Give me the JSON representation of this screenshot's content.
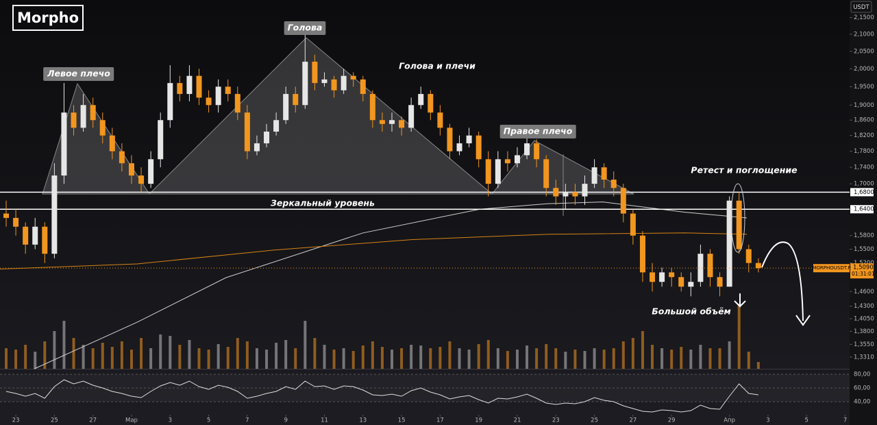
{
  "logo": "Morpho",
  "currency": "USDT",
  "chart_data": {
    "type": "candlestick",
    "log_scale": true,
    "x": [
      -0.5,
      0,
      0.5,
      1,
      1.5,
      2,
      2.5,
      3,
      3.5,
      4,
      4.5,
      5,
      5.5,
      6,
      6.5,
      7,
      7.5,
      8,
      8.5,
      9,
      9.5,
      10,
      10.5,
      11,
      11.5,
      12,
      12.5,
      13,
      13.5,
      14,
      14.5,
      15,
      15.5,
      16,
      16.5,
      17,
      17.5,
      18,
      18.5,
      19,
      19.5,
      20,
      20.5,
      21,
      21.5,
      22,
      22.5,
      23,
      23.5,
      24,
      24.5,
      25,
      25.5,
      26,
      26.5,
      27,
      27.5,
      28,
      28.5,
      29,
      29.5,
      30,
      30.5,
      31,
      31.5,
      32,
      32.5,
      33,
      33.5,
      34,
      34.5,
      35,
      35.5,
      36,
      36.5,
      37,
      37.5,
      38,
      38.5
    ],
    "xlim": [
      -0.82,
      43.23
    ],
    "xticks": [
      {
        "value": 0,
        "label": "23"
      },
      {
        "value": 2,
        "label": "25"
      },
      {
        "value": 4,
        "label": "27"
      },
      {
        "value": 6,
        "label": "Мар"
      },
      {
        "value": 8,
        "label": "3"
      },
      {
        "value": 10,
        "label": "5"
      },
      {
        "value": 12,
        "label": "7"
      },
      {
        "value": 14,
        "label": "9"
      },
      {
        "value": 16,
        "label": "11"
      },
      {
        "value": 18,
        "label": "13"
      },
      {
        "value": 20,
        "label": "15"
      },
      {
        "value": 22,
        "label": "17"
      },
      {
        "value": 24,
        "label": "19"
      },
      {
        "value": 26,
        "label": "21"
      },
      {
        "value": 28,
        "label": "23"
      },
      {
        "value": 30,
        "label": "25"
      },
      {
        "value": 32,
        "label": "27"
      },
      {
        "value": 34,
        "label": "29"
      },
      {
        "value": 37,
        "label": "Апр"
      },
      {
        "value": 39,
        "label": "3"
      },
      {
        "value": 41,
        "label": "5"
      },
      {
        "value": 43,
        "label": "7"
      }
    ],
    "open": [
      1.63,
      1.62,
      1.6,
      1.56,
      1.6,
      1.54,
      1.72,
      1.88,
      1.84,
      1.9,
      1.86,
      1.82,
      1.78,
      1.75,
      1.72,
      1.7,
      1.76,
      1.86,
      1.96,
      1.93,
      1.98,
      1.92,
      1.9,
      1.95,
      1.93,
      1.88,
      1.78,
      1.8,
      1.83,
      1.86,
      1.93,
      1.9,
      2.02,
      1.96,
      1.97,
      1.94,
      1.98,
      1.97,
      1.93,
      1.86,
      1.85,
      1.86,
      1.84,
      1.9,
      1.93,
      1.88,
      1.84,
      1.78,
      1.8,
      1.82,
      1.76,
      1.7,
      1.76,
      1.75,
      1.77,
      1.8,
      1.76,
      1.69,
      1.67,
      1.68,
      1.67,
      1.7,
      1.74,
      1.71,
      1.69,
      1.63,
      1.58,
      1.5,
      1.48,
      1.5,
      1.49,
      1.47,
      1.48,
      1.54,
      1.49,
      1.47,
      1.66,
      1.55,
      1.52
    ],
    "high": [
      1.66,
      1.64,
      1.61,
      1.62,
      1.61,
      1.75,
      1.96,
      1.9,
      1.93,
      1.92,
      1.88,
      1.84,
      1.8,
      1.77,
      1.74,
      1.78,
      1.88,
      2.01,
      1.98,
      2.01,
      2.0,
      1.94,
      1.97,
      1.97,
      1.95,
      1.9,
      1.82,
      1.85,
      1.88,
      1.95,
      1.95,
      2.1,
      2.04,
      1.99,
      1.98,
      2.0,
      1.99,
      1.98,
      1.94,
      1.88,
      1.88,
      1.87,
      1.92,
      1.95,
      1.94,
      1.9,
      1.85,
      1.82,
      1.84,
      1.83,
      1.78,
      1.78,
      1.78,
      1.79,
      1.82,
      1.81,
      1.77,
      1.71,
      1.7,
      1.7,
      1.72,
      1.76,
      1.75,
      1.73,
      1.7,
      1.64,
      1.59,
      1.52,
      1.51,
      1.51,
      1.5,
      1.5,
      1.56,
      1.55,
      1.5,
      1.67,
      1.68,
      1.56,
      1.53
    ],
    "low": [
      1.6,
      1.58,
      1.54,
      1.55,
      1.52,
      1.53,
      1.7,
      1.82,
      1.83,
      1.84,
      1.8,
      1.76,
      1.73,
      1.7,
      1.68,
      1.69,
      1.74,
      1.84,
      1.91,
      1.91,
      1.9,
      1.88,
      1.88,
      1.91,
      1.86,
      1.76,
      1.77,
      1.79,
      1.82,
      1.85,
      1.88,
      1.89,
      1.94,
      1.95,
      1.92,
      1.93,
      1.95,
      1.91,
      1.84,
      1.83,
      1.83,
      1.82,
      1.83,
      1.89,
      1.86,
      1.82,
      1.76,
      1.77,
      1.79,
      1.74,
      1.67,
      1.69,
      1.73,
      1.74,
      1.76,
      1.74,
      1.67,
      1.65,
      1.64,
      1.65,
      1.65,
      1.69,
      1.69,
      1.67,
      1.61,
      1.56,
      1.48,
      1.46,
      1.47,
      1.47,
      1.46,
      1.45,
      1.47,
      1.47,
      1.45,
      1.47,
      1.54,
      1.5,
      1.5
    ],
    "close": [
      1.62,
      1.6,
      1.56,
      1.6,
      1.54,
      1.72,
      1.88,
      1.84,
      1.9,
      1.86,
      1.82,
      1.78,
      1.75,
      1.72,
      1.7,
      1.76,
      1.86,
      1.96,
      1.93,
      1.98,
      1.92,
      1.9,
      1.95,
      1.93,
      1.88,
      1.78,
      1.8,
      1.83,
      1.86,
      1.93,
      1.9,
      2.02,
      1.96,
      1.97,
      1.94,
      1.98,
      1.97,
      1.93,
      1.86,
      1.85,
      1.86,
      1.84,
      1.9,
      1.93,
      1.88,
      1.84,
      1.78,
      1.8,
      1.82,
      1.76,
      1.7,
      1.76,
      1.75,
      1.77,
      1.8,
      1.76,
      1.69,
      1.67,
      1.68,
      1.67,
      1.7,
      1.74,
      1.71,
      1.69,
      1.63,
      1.58,
      1.5,
      1.48,
      1.5,
      1.49,
      1.47,
      1.48,
      1.54,
      1.49,
      1.47,
      1.66,
      1.55,
      1.52,
      1.509
    ],
    "up_color": "#e6e6e6",
    "down_color": "#f2961f",
    "ylim": [
      1.309,
      2.204
    ],
    "yticks": [
      {
        "value": 2.15,
        "label": "2,1500"
      },
      {
        "value": 2.1,
        "label": "2,1000"
      },
      {
        "value": 2.05,
        "label": "2,0500"
      },
      {
        "value": 2.0,
        "label": "2,0000"
      },
      {
        "value": 1.95,
        "label": "1,9500"
      },
      {
        "value": 1.9,
        "label": "1,9000"
      },
      {
        "value": 1.86,
        "label": "1,8600"
      },
      {
        "value": 1.82,
        "label": "1,8200"
      },
      {
        "value": 1.78,
        "label": "1,7800"
      },
      {
        "value": 1.74,
        "label": "1,7400"
      },
      {
        "value": 1.7,
        "label": "1,7000"
      },
      {
        "value": 1.58,
        "label": "1,5800"
      },
      {
        "value": 1.55,
        "label": "1,5500"
      },
      {
        "value": 1.52,
        "label": "1,5200"
      },
      {
        "value": 1.46,
        "label": "1,4600"
      },
      {
        "value": 1.43,
        "label": "1,4300"
      },
      {
        "value": 1.405,
        "label": "1,4050"
      },
      {
        "value": 1.38,
        "label": "1,3800"
      },
      {
        "value": 1.355,
        "label": "1,3550"
      },
      {
        "value": 1.331,
        "label": "1,3310"
      }
    ],
    "volume": {
      "ylim": [
        0,
        100
      ],
      "values": [
        30,
        28,
        35,
        25,
        40,
        55,
        70,
        45,
        35,
        30,
        38,
        32,
        40,
        28,
        45,
        30,
        50,
        48,
        35,
        42,
        30,
        28,
        36,
        32,
        45,
        40,
        30,
        28,
        38,
        42,
        30,
        70,
        45,
        35,
        28,
        30,
        26,
        34,
        40,
        32,
        28,
        30,
        35,
        34,
        30,
        32,
        40,
        30,
        28,
        36,
        42,
        30,
        26,
        28,
        34,
        30,
        36,
        30,
        25,
        28,
        26,
        30,
        28,
        30,
        40,
        45,
        55,
        35,
        30,
        28,
        32,
        28,
        35,
        30,
        30,
        40,
        95,
        25,
        10
      ]
    },
    "moving_averages": [
      {
        "color": "#d0d0d0",
        "x": [
          0.96,
          6.29,
          10.9,
          18.0,
          24.05,
          27.6,
          30.44,
          34.7,
          37.9
        ],
        "values": [
          1.309,
          1.398,
          1.489,
          1.586,
          1.64,
          1.653,
          1.657,
          1.633,
          1.62
        ]
      },
      {
        "color": "#d98216",
        "x": [
          -0.82,
          6.29,
          13.4,
          20.5,
          27.6,
          34.7,
          37.9
        ],
        "values": [
          1.507,
          1.518,
          1.548,
          1.571,
          1.583,
          1.586,
          1.583
        ]
      }
    ],
    "levels": [
      {
        "value": 1.68,
        "label": "1,6800"
      },
      {
        "value": 1.64,
        "label": "1,6400"
      }
    ],
    "last_price": {
      "symbol": "MORPHOUSDT.P",
      "value": 1.509,
      "label": "1,5090",
      "countdown": "01:31:01"
    },
    "rsi": {
      "ylim": [
        21,
        88
      ],
      "yticks": [
        {
          "value": 80,
          "label": "80,00"
        },
        {
          "value": 60,
          "label": "60,00"
        },
        {
          "value": 40,
          "label": "40,00"
        }
      ],
      "values": [
        55,
        52,
        48,
        52,
        45,
        62,
        72,
        66,
        70,
        64,
        60,
        55,
        52,
        48,
        46,
        55,
        63,
        68,
        64,
        70,
        62,
        58,
        64,
        61,
        55,
        45,
        48,
        52,
        55,
        62,
        58,
        70,
        62,
        63,
        58,
        63,
        62,
        57,
        50,
        49,
        51,
        48,
        56,
        60,
        54,
        50,
        44,
        47,
        49,
        43,
        38,
        45,
        44,
        47,
        51,
        45,
        38,
        36,
        38,
        37,
        40,
        46,
        42,
        40,
        34,
        30,
        26,
        25,
        28,
        27,
        25,
        27,
        35,
        30,
        29,
        48,
        66,
        52,
        50
      ]
    },
    "annotations": [
      "Левое плечо",
      "Голова",
      "Правое плечо",
      "Голова и плечи",
      "Зеркальный уровень",
      "Ретест и поглощение",
      "Большой объём"
    ]
  }
}
